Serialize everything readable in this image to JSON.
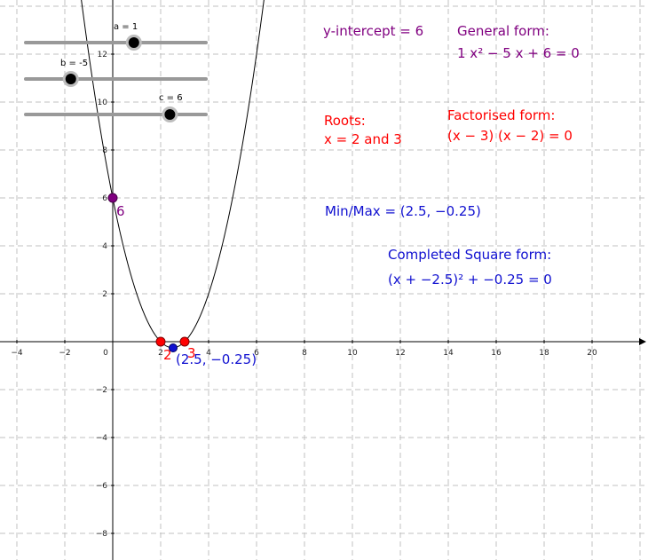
{
  "sliders": [
    {
      "label": "a = 1",
      "value": 1,
      "min": -5,
      "max": 5
    },
    {
      "label": "b = -5",
      "value": -5,
      "min": -10,
      "max": 10
    },
    {
      "label": "c = 6",
      "value": 6,
      "min": -10,
      "max": 10
    }
  ],
  "axes": {
    "x_ticks": [
      "−4",
      "−2",
      "0",
      "2",
      "4",
      "6",
      "8",
      "10",
      "12",
      "14",
      "16",
      "18",
      "20"
    ],
    "y_ticks": [
      "12",
      "10",
      "8",
      "6",
      "4",
      "2",
      "−2",
      "−4",
      "−6",
      "−8"
    ]
  },
  "points": {
    "y_intercept_label": "6",
    "root1_label": "2",
    "root2_label": "3",
    "vertex_label": "(2.5, −0.25)"
  },
  "texts": {
    "y_intercept": "y-intercept = 6",
    "general_title": "General form:",
    "general_expr": "1 x² − 5 x + 6 = 0",
    "roots_title": "Roots:",
    "roots_value": "x = 2 and 3",
    "factorised_title": "Factorised form:",
    "factorised_expr": "(x − 3) (x − 2) = 0",
    "minmax": "Min/Max = (2.5, −0.25)",
    "completed_title": "Completed Square form:",
    "completed_expr": "(x + −2.5)² + −0.25 = 0"
  },
  "colors": {
    "purple": "#800080",
    "red": "#ff0000",
    "blue": "#1010d0",
    "curve": "#000000",
    "grid": "#c0c0c0"
  }
}
